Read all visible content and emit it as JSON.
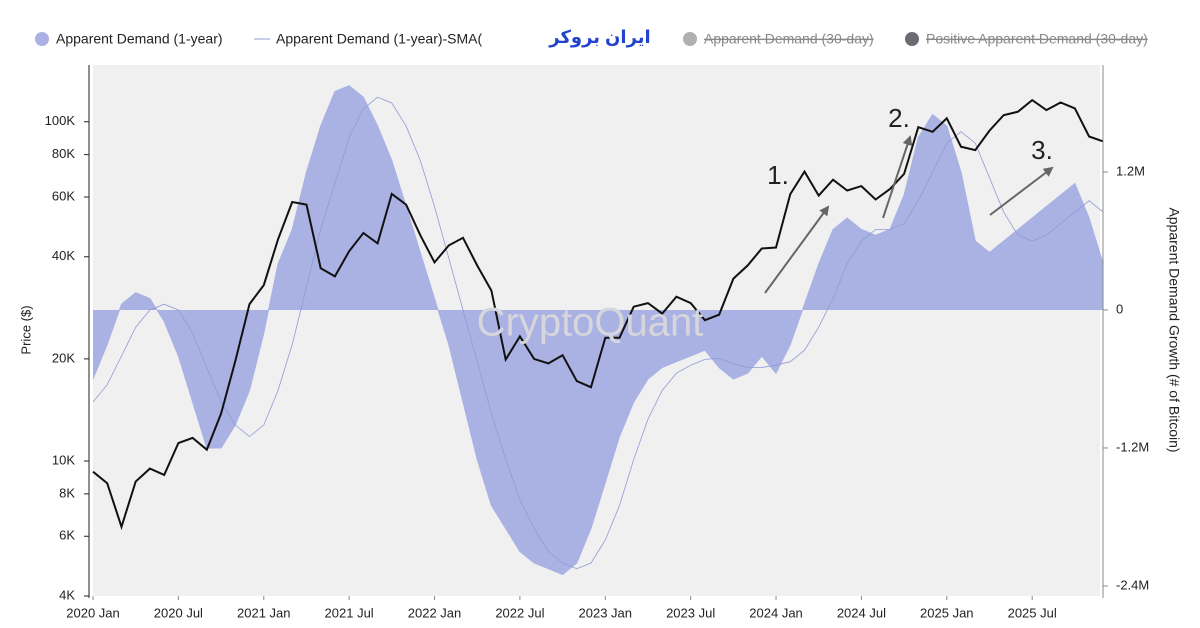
{
  "chart_data": {
    "type": "line",
    "watermark": "CryptoQuant",
    "logo": "ایران بروکر",
    "ylabel": "Price ($)",
    "y2label": "Apparent Demand Growth (# of Bitcoin)",
    "ylog": true,
    "ylim": [
      4000,
      147000
    ],
    "yticks": [
      {
        "value": 4000,
        "label": "4K"
      },
      {
        "value": 6000,
        "label": "6K"
      },
      {
        "value": 8000,
        "label": "8K"
      },
      {
        "value": 10000,
        "label": "10K"
      },
      {
        "value": 20000,
        "label": "20K"
      },
      {
        "value": 40000,
        "label": "40K"
      },
      {
        "value": 60000,
        "label": "60K"
      },
      {
        "value": 80000,
        "label": "80K"
      },
      {
        "value": 100000,
        "label": "100K"
      }
    ],
    "y2lim": [
      -2487000,
      2130000
    ],
    "y2ticks": [
      {
        "value": -2400000,
        "label": "-2.4M"
      },
      {
        "value": -1200000,
        "label": "-1.2M"
      },
      0,
      {
        "value": 1200000,
        "label": "1.2M"
      }
    ],
    "x": [
      "2020-01",
      "2020-02",
      "2020-03",
      "2020-04",
      "2020-05",
      "2020-06",
      "2020-07",
      "2020-08",
      "2020-09",
      "2020-10",
      "2020-11",
      "2020-12",
      "2021-01",
      "2021-02",
      "2021-03",
      "2021-04",
      "2021-05",
      "2021-06",
      "2021-07",
      "2021-08",
      "2021-09",
      "2021-10",
      "2021-11",
      "2021-12",
      "2022-01",
      "2022-02",
      "2022-03",
      "2022-04",
      "2022-05",
      "2022-06",
      "2022-07",
      "2022-08",
      "2022-09",
      "2022-10",
      "2022-11",
      "2022-12",
      "2023-01",
      "2023-02",
      "2023-03",
      "2023-04",
      "2023-05",
      "2023-06",
      "2023-07",
      "2023-08",
      "2023-09",
      "2023-10",
      "2023-11",
      "2023-12",
      "2024-01",
      "2024-02",
      "2024-03",
      "2024-04",
      "2024-05",
      "2024-06",
      "2024-07",
      "2024-08",
      "2024-09",
      "2024-10",
      "2024-11",
      "2024-12",
      "2025-01",
      "2025-02",
      "2025-03",
      "2025-04",
      "2025-05",
      "2025-06",
      "2025-07",
      "2025-08",
      "2025-09",
      "2025-10",
      "2025-11",
      "2025-12"
    ],
    "xticks": [
      {
        "value": "2020-01",
        "label": "2020 Jan"
      },
      {
        "value": "2020-07",
        "label": "2020 Jul"
      },
      {
        "value": "2021-01",
        "label": "2021 Jan"
      },
      {
        "value": "2021-07",
        "label": "2021 Jul"
      },
      {
        "value": "2022-01",
        "label": "2022 Jan"
      },
      {
        "value": "2022-07",
        "label": "2022 Jul"
      },
      {
        "value": "2023-01",
        "label": "2023 Jan"
      },
      {
        "value": "2023-07",
        "label": "2023 Jul"
      },
      {
        "value": "2024-01",
        "label": "2024 Jan"
      },
      {
        "value": "2024-07",
        "label": "2024 Jul"
      },
      {
        "value": "2025-01",
        "label": "2025 Jan"
      },
      {
        "value": "2025-07",
        "label": "2025 Jul"
      }
    ],
    "series": [
      {
        "color": "#111111",
        "values": [
          9300,
          8600,
          6400,
          8700,
          9500,
          9100,
          11300,
          11700,
          10800,
          13800,
          19700,
          29000,
          33000,
          45000,
          58000,
          57000,
          37000,
          35000,
          41500,
          47000,
          43800,
          61300,
          57000,
          46300,
          38500,
          43200,
          45500,
          37700,
          31800,
          19900,
          23300,
          20000,
          19400,
          20500,
          17200,
          16500,
          23100,
          23100,
          28500,
          29200,
          27200,
          30500,
          29200,
          26000,
          27000,
          34500,
          37700,
          42300,
          42600,
          61200,
          71300,
          60600,
          67500,
          62700,
          64600,
          59000,
          63300,
          70200,
          96400,
          93400,
          102400,
          84400,
          82500,
          94200,
          104600,
          107100,
          115800,
          108200,
          114000,
          109500,
          90500,
          87500
        ]
      },
      {
        "name": "Apparent Demand (1-year)",
        "color": "#a9b2e3",
        "area": true,
        "axis": "y2",
        "values": [
          -600000,
          -300000,
          50000,
          150000,
          100000,
          -100000,
          -400000,
          -800000,
          -1200000,
          -1200000,
          -1000000,
          -700000,
          -200000,
          400000,
          700000,
          1200000,
          1600000,
          1900000,
          1950000,
          1850000,
          1600000,
          1300000,
          900000,
          500000,
          100000,
          -300000,
          -800000,
          -1300000,
          -1700000,
          -1900000,
          -2100000,
          -2200000,
          -2250000,
          -2300000,
          -2200000,
          -1900000,
          -1500000,
          -1100000,
          -800000,
          -600000,
          -500000,
          -450000,
          -400000,
          -350000,
          -500000,
          -600000,
          -550000,
          -400000,
          -550000,
          -300000,
          50000,
          400000,
          700000,
          800000,
          700000,
          650000,
          700000,
          1000000,
          1500000,
          1700000,
          1600000,
          1200000,
          600000,
          500000,
          600000,
          700000,
          800000,
          900000,
          1000000,
          1100000,
          800000,
          400000
        ]
      },
      {
        "name": "Apparent Demand (1-year)-SMA(",
        "color": "#8f9bd6",
        "axis": "y2",
        "values": [
          -800000,
          -650000,
          -400000,
          -150000,
          0,
          50000,
          0,
          -200000,
          -500000,
          -800000,
          -1000000,
          -1100000,
          -1000000,
          -700000,
          -300000,
          200000,
          700000,
          1100000,
          1500000,
          1750000,
          1850000,
          1800000,
          1600000,
          1300000,
          900000,
          450000,
          0,
          -450000,
          -900000,
          -1300000,
          -1650000,
          -1900000,
          -2100000,
          -2200000,
          -2250000,
          -2200000,
          -2000000,
          -1700000,
          -1300000,
          -950000,
          -700000,
          -550000,
          -480000,
          -430000,
          -420000,
          -470000,
          -500000,
          -500000,
          -480000,
          -450000,
          -350000,
          -150000,
          100000,
          400000,
          600000,
          700000,
          700000,
          750000,
          950000,
          1200000,
          1450000,
          1550000,
          1450000,
          1150000,
          850000,
          650000,
          600000,
          650000,
          750000,
          850000,
          950000,
          850000
        ]
      },
      {
        "name": "Apparent Demand (30-day)",
        "color": "#b0b0b0",
        "hidden": true
      },
      {
        "name": "Positive Apparent Demand (30-day)",
        "color": "#6b6b72",
        "hidden": true
      }
    ],
    "annotations": [
      "1.",
      "2.",
      "3."
    ]
  }
}
